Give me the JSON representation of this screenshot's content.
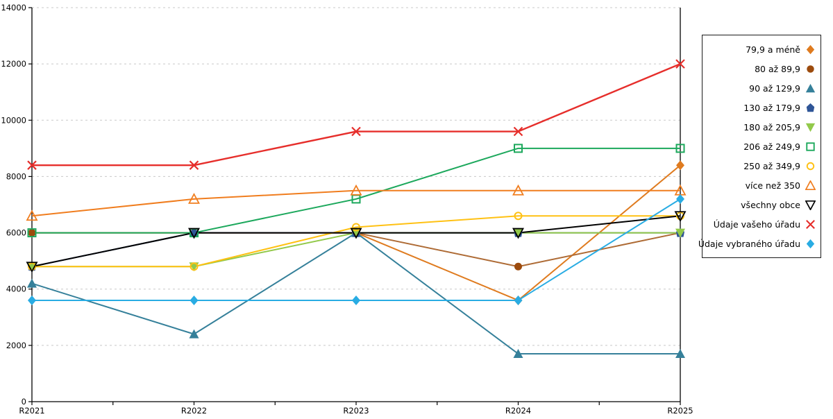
{
  "chart_data": {
    "type": "line",
    "title": "",
    "xlabel": "",
    "ylabel": "",
    "x_categories": [
      "R2021",
      "R2022",
      "R2023",
      "R2024",
      "R2025"
    ],
    "ylim": [
      0,
      14000
    ],
    "y_ticks": [
      0,
      2000,
      4000,
      6000,
      8000,
      10000,
      12000,
      14000
    ],
    "y_tick_labels": [
      "0",
      "2000",
      "4000",
      "6000",
      "8000",
      "10000",
      "12000",
      "14000"
    ],
    "grid": "horizontal-dashed",
    "grid_color": "#c8c8c8",
    "axis_color": "#000000",
    "legend_position": "right-outside",
    "series": [
      {
        "name": "79,9 a méně",
        "marker": "diamond-filled",
        "color": "#DF7B1F",
        "values": [
          6000,
          6000,
          6000,
          3600,
          8400
        ]
      },
      {
        "name": "80 až 89,9",
        "marker": "circle-filled",
        "color": "#9C4B0D",
        "line_color": "#AE6B35",
        "values": [
          6000,
          6000,
          6000,
          4800,
          6000
        ]
      },
      {
        "name": "90 až 129,9",
        "marker": "triangle-up-filled",
        "color": "#35809A",
        "values": [
          4200,
          2400,
          6000,
          1700,
          1700
        ]
      },
      {
        "name": "130 až 179,9",
        "marker": "pentagon-filled",
        "color": "#2F5597",
        "values": [
          4800,
          6000,
          6000,
          6000,
          6000
        ]
      },
      {
        "name": "180 až 205,9",
        "marker": "triangle-down-filled",
        "color": "#92C94A",
        "values": [
          4800,
          4800,
          6000,
          6000,
          6000
        ]
      },
      {
        "name": "206 až 249,9",
        "marker": "square-open",
        "color": "#1CA85C",
        "values": [
          6000,
          6000,
          7200,
          9000,
          9000
        ]
      },
      {
        "name": "250 až 349,9",
        "marker": "circle-open",
        "color": "#FFC113",
        "values": [
          4800,
          4800,
          6200,
          6600,
          6600
        ]
      },
      {
        "name": "více než 350",
        "marker": "triangle-up-open",
        "color": "#F07D1E",
        "values": [
          6600,
          7200,
          7500,
          7500,
          7500
        ]
      },
      {
        "name": "všechny obce",
        "marker": "triangle-down-open",
        "color": "#000000",
        "values": [
          4800,
          6000,
          6000,
          6000,
          6600
        ]
      },
      {
        "name": "Údaje vašeho úřadu",
        "marker": "x",
        "color": "#E62E2B",
        "values": [
          8400,
          8400,
          9600,
          9600,
          12000
        ]
      },
      {
        "name": "Údaje vybraného úřadu",
        "marker": "diamond-filled",
        "color": "#29ACE3",
        "values": [
          3600,
          3600,
          3600,
          3600,
          7200
        ]
      }
    ]
  }
}
